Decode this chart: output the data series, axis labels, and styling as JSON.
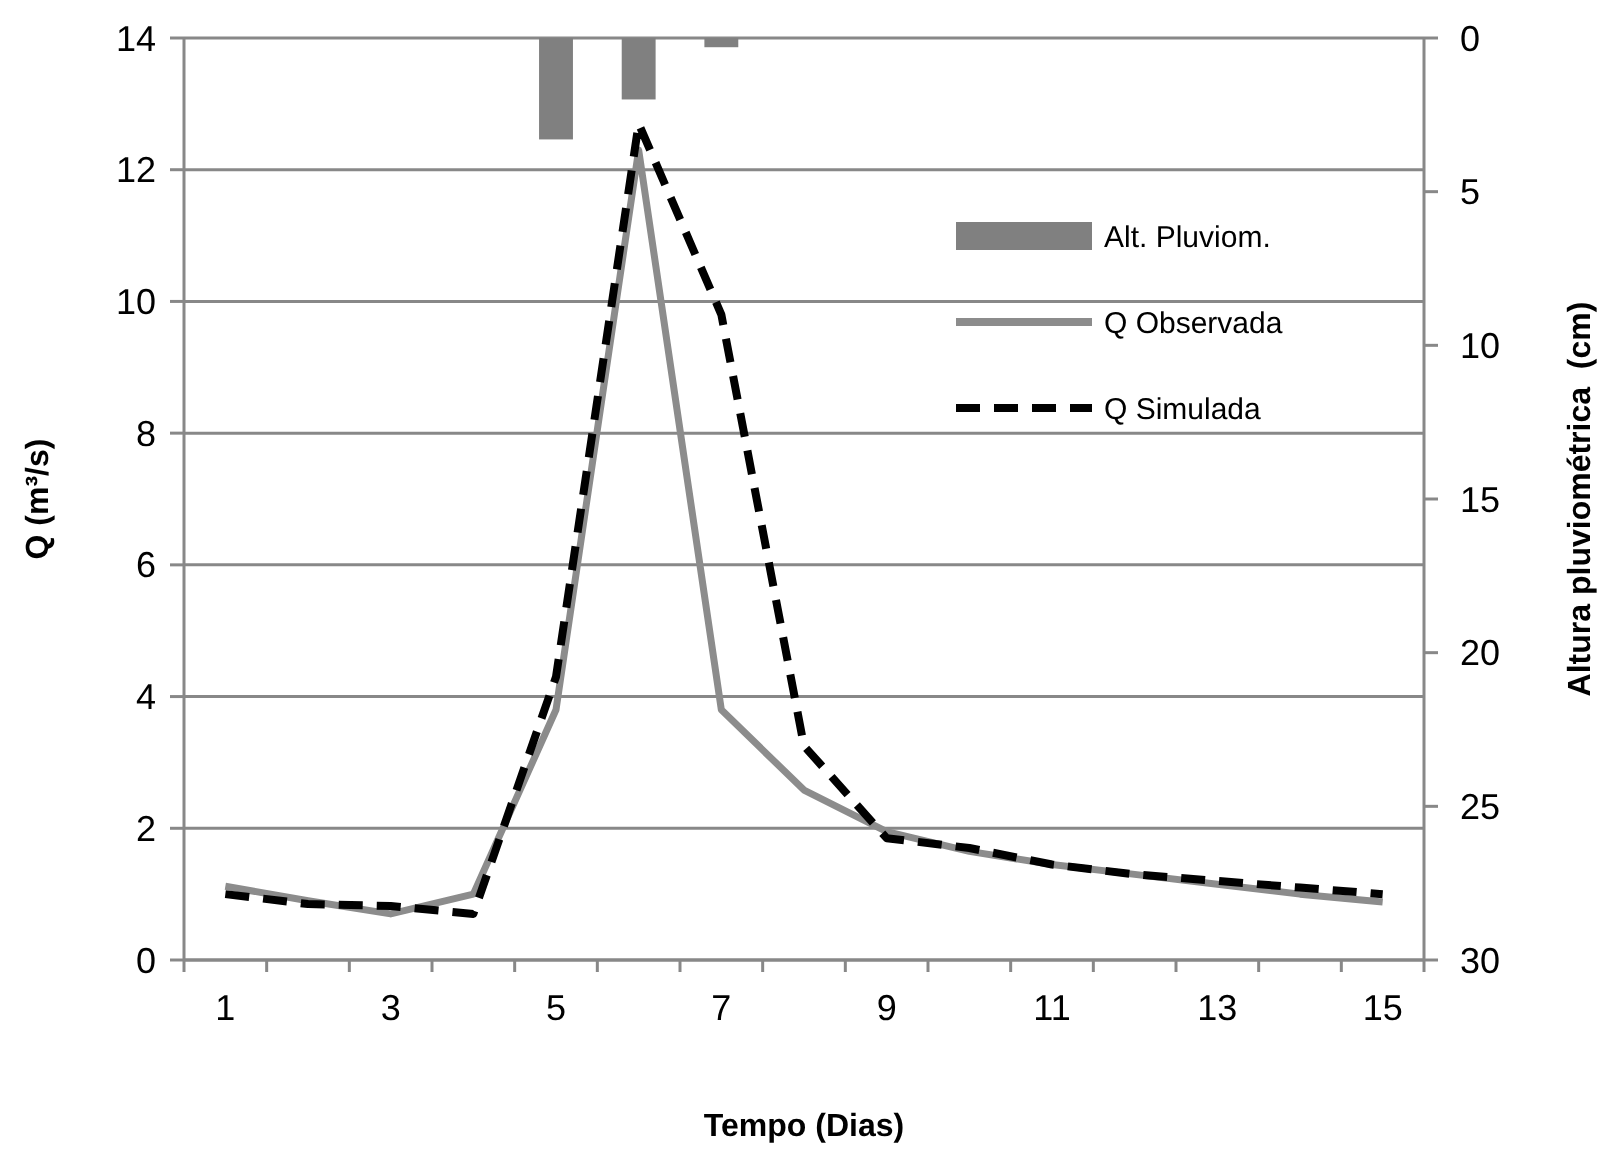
{
  "chart_data": {
    "type": "line",
    "xlabel": "Tempo (Dias)",
    "ylabel": "Q (m³/s)",
    "y2label": "Altura pluviométrica  (cm)",
    "x": [
      1,
      2,
      3,
      4,
      5,
      6,
      7,
      8,
      9,
      10,
      11,
      12,
      13,
      14,
      15
    ],
    "xlim": [
      0.5,
      15.5
    ],
    "xticks": [
      1,
      3,
      5,
      7,
      9,
      11,
      13,
      15,
      {
        "value": 0.5,
        "label": null
      },
      {
        "value": 1.5,
        "label": null
      },
      {
        "value": 2.5,
        "label": null
      },
      {
        "value": 3.5,
        "label": null
      },
      {
        "value": 4.5,
        "label": null
      },
      {
        "value": 5.5,
        "label": null
      },
      {
        "value": 6.5,
        "label": null
      },
      {
        "value": 7.5,
        "label": null
      },
      {
        "value": 8.5,
        "label": null
      },
      {
        "value": 9.5,
        "label": null
      },
      {
        "value": 10.5,
        "label": null
      },
      {
        "value": 11.5,
        "label": null
      },
      {
        "value": 12.5,
        "label": null
      },
      {
        "value": 13.5,
        "label": null
      },
      {
        "value": 14.5,
        "label": null
      },
      {
        "value": 15.5,
        "label": null
      }
    ],
    "series": [
      {
        "name": "Alt. Pluviom.",
        "type": "bar",
        "axis": "y2",
        "color": "#808080",
        "values": [
          null,
          null,
          null,
          null,
          3.3,
          2.0,
          0.3,
          null,
          null,
          null,
          null,
          null,
          null,
          null,
          null
        ]
      },
      {
        "name": "Q Observada",
        "color": "#8c8c8c",
        "line_style": "solid",
        "values": [
          1.12,
          0.9,
          0.7,
          1.0,
          3.8,
          12.3,
          3.8,
          2.58,
          1.95,
          1.65,
          1.45,
          1.3,
          1.15,
          1.0,
          0.88
        ]
      },
      {
        "name": "Q Simulada",
        "color": "#000000",
        "line_style": "dashed",
        "values": [
          1.0,
          0.85,
          0.82,
          0.7,
          4.3,
          12.7,
          9.8,
          3.25,
          1.85,
          1.7,
          1.45,
          1.3,
          1.2,
          1.1,
          1.0
        ]
      }
    ],
    "ylim": [
      0,
      14
    ],
    "yticks": [
      0,
      2,
      4,
      6,
      8,
      10,
      12,
      14
    ],
    "y2lim": [
      30,
      0
    ],
    "y2ticks": [
      0,
      5,
      10,
      15,
      20,
      25,
      30
    ],
    "grid": "y",
    "legend": "right",
    "marker": "none"
  }
}
